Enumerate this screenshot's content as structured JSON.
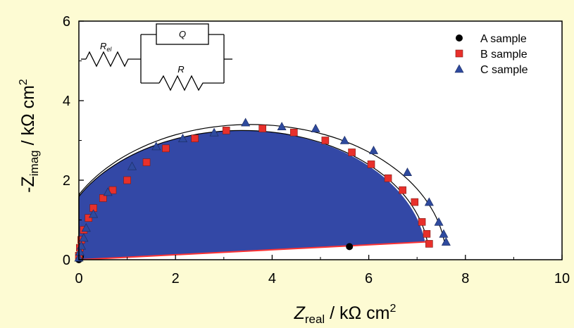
{
  "chart_data": {
    "type": "scatter",
    "xlabel_main": "Z",
    "xlabel_sub": "real",
    "xlabel_unit": " / kΩ cm",
    "xlabel_sup": "2",
    "ylabel_main": "-Z",
    "ylabel_sub": "imag",
    "ylabel_unit": " / kΩ cm",
    "ylabel_sup": "2",
    "xlim": [
      0,
      10
    ],
    "ylim": [
      0,
      6
    ],
    "xticks": [
      0,
      2,
      4,
      6,
      8,
      10
    ],
    "yticks": [
      0,
      2,
      4,
      6
    ],
    "grid": false,
    "legend_position": "top-right",
    "circuit": {
      "r_el_main": "R",
      "r_el_sub": "el",
      "q_label": "Q",
      "r_label": "R"
    },
    "series": [
      {
        "name": "A sample",
        "marker": "circle",
        "color": "#000000",
        "x": [
          0.0,
          0.01,
          0.02,
          0.03,
          5.6
        ],
        "y": [
          0.0,
          0.02,
          0.05,
          0.08,
          0.33
        ]
      },
      {
        "name": "B sample",
        "marker": "square",
        "color": "#e8302b",
        "x": [
          0.0,
          0.02,
          0.05,
          0.1,
          0.2,
          0.3,
          0.5,
          0.7,
          1.0,
          1.4,
          1.8,
          2.4,
          3.05,
          3.8,
          4.45,
          5.1,
          5.65,
          6.05,
          6.4,
          6.7,
          6.95,
          7.1,
          7.2,
          7.25
        ],
        "y": [
          0.1,
          0.3,
          0.5,
          0.75,
          1.05,
          1.3,
          1.55,
          1.75,
          2.0,
          2.45,
          2.8,
          3.05,
          3.25,
          3.3,
          3.2,
          3.0,
          2.7,
          2.4,
          2.05,
          1.75,
          1.45,
          0.95,
          0.65,
          0.4
        ]
      },
      {
        "name": "C sample",
        "marker": "triangle",
        "color": "#2e4a9e",
        "x": [
          0.0,
          0.02,
          0.05,
          0.1,
          0.15,
          0.3,
          0.6,
          1.1,
          1.6,
          2.15,
          2.8,
          3.45,
          4.2,
          4.9,
          5.5,
          6.1,
          6.8,
          7.25,
          7.45,
          7.55,
          7.6
        ],
        "y": [
          0.05,
          0.2,
          0.35,
          0.55,
          0.8,
          1.15,
          1.7,
          2.35,
          2.85,
          3.05,
          3.2,
          3.45,
          3.35,
          3.3,
          3.0,
          2.75,
          2.2,
          1.45,
          0.95,
          0.65,
          0.45
        ]
      }
    ],
    "fit_curves": [
      {
        "series": "B sample",
        "color": "#000000",
        "x_start": 0.0,
        "x_end": 7.25,
        "y_end": 0.4,
        "y_peak": 3.25
      },
      {
        "series": "C sample",
        "color": "#000000",
        "x_start": 0.0,
        "x_end": 7.6,
        "y_end": 0.45,
        "y_peak": 3.4
      }
    ],
    "filled_region": {
      "color": "#3348a6",
      "edge_color": "#ff3333",
      "x_end": 7.2,
      "y_end": 0.45,
      "y_peak": 3.25
    }
  },
  "colors": {
    "background": "#fdfbd3",
    "plot_area": "#ffffff"
  }
}
